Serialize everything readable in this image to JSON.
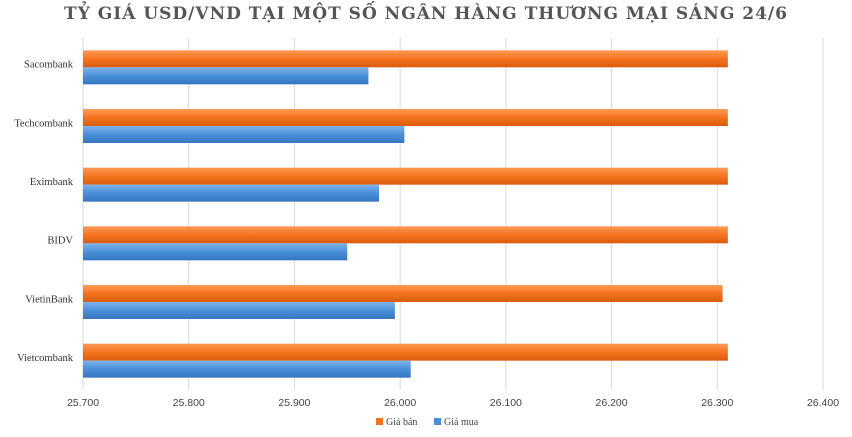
{
  "chart_data": {
    "type": "bar",
    "orientation": "horizontal",
    "title": "TỶ GIÁ USD/VND TẠI MỘT SỐ NGÂN HÀNG THƯƠNG MẠI SÁNG 24/6",
    "categories": [
      "Sacombank",
      "Techcombank",
      "Eximbank",
      "BIDV",
      "VietinBank",
      "Vietcombank"
    ],
    "series": [
      {
        "name": "Giá bán",
        "color": "#F4731F",
        "values": [
          26310,
          26310,
          26310,
          26310,
          26305,
          26310
        ]
      },
      {
        "name": "Giá mua",
        "color": "#4A90D9",
        "values": [
          25970,
          26004,
          25980,
          25950,
          25995,
          26010
        ]
      }
    ],
    "xlim": [
      25700,
      26400
    ],
    "x_ticks": [
      25700,
      25800,
      25900,
      26000,
      26100,
      26200,
      26300,
      26400
    ],
    "x_tick_labels": [
      "25.700",
      "25.800",
      "25.900",
      "26.000",
      "26.100",
      "26.200",
      "26.300",
      "26.400"
    ],
    "grid": true,
    "legend_position": "bottom"
  }
}
